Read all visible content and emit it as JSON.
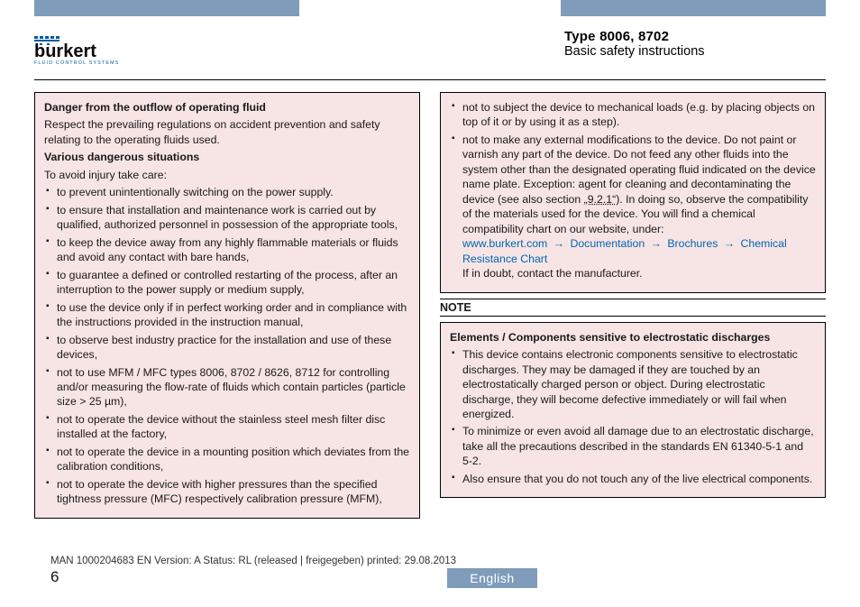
{
  "colors": {
    "tab": "#7f9cba",
    "warn_bg": "#f7e4e4",
    "link": "#0066b3",
    "text": "#1a1a1a",
    "logo_blue": "#005b9e",
    "logo_dark": "#0a0a0a"
  },
  "header": {
    "brand_main": "burkert",
    "brand_sub": "FLUID CONTROL SYSTEMS",
    "title": "Type 8006, 8702",
    "subtitle": "Basic safety instructions"
  },
  "left": {
    "h1": "Danger from the outflow of operating fluid",
    "p1": "Respect the prevailing regulations on accident prevention and safety relating to the operating fluids used.",
    "h2": "Various dangerous situations",
    "p2": "To avoid injury take care:",
    "items": [
      "to prevent unintentionally switching on the power supply.",
      "to ensure that installation and maintenance work is carried out by qualified, authorized personnel in possession of the appropriate tools,",
      "to keep the device away from any highly flammable materials or fluids and avoid any contact with bare hands,",
      "to guarantee a defined or controlled restarting of the process, after an interruption to the power supply or medium supply,",
      "to use the device only if in perfect working order and in compliance with the instructions provided in the instruction manual,",
      "to observe best industry practice for the installation and use of these devices,",
      "not to use MFM / MFC types 8006, 8702 / 8626, 8712 for controlling and/or measuring the flow-rate of fluids which contain particles (particle size > 25 µm),",
      "not to operate the device without the stainless steel mesh filter disc installed at the factory,",
      "not to operate the device in a mounting position which deviates from the calibration conditions,",
      "not to operate the device with higher pressures than the specified tightness pressure (MFC) respectively calibration pressure (MFM),"
    ]
  },
  "right_top": {
    "items_pre": [
      "not to subject the device to mechanical loads (e.g. by placing objects on top of it or by using it as a step).",
      ""
    ],
    "item2_a": "not to make any external modifications to the device. Do not paint or varnish any part of the device. Do not feed any other fluids into the system other than the designated operating fluid indicated on the device name plate. Exception: agent for cleaning and decontaminating the device (see also section ",
    "item2_ref": "„9.2.1“",
    "item2_b": "). In doing so, observe the compatibility of the materials used for the device. You will find a chemical compatibility chart on our website, under:",
    "link_path": [
      "www.burkert.com",
      "Documentation",
      "Brochures",
      "Chemical Resistance Chart"
    ],
    "item2_c": "If in doubt, contact the manufacturer."
  },
  "note_label": "NOTE",
  "right_note": {
    "h": "Elements / Components sensitive to electrostatic discharges",
    "items": [
      "This device contains electronic components sensitive to electrostatic discharges. They may be damaged if they are touched by an electrostatically charged person or object. During electrostatic discharge, they will become defective immediately or will fail when energized.",
      "To minimize or even avoid all damage due to an electrostatic discharge, take all the precautions described in the standards EN 61340-5-1 and 5-2.",
      "Also ensure that you do not touch any of the live electrical components."
    ]
  },
  "footer": {
    "meta": "MAN 1000204683 EN Version: A Status: RL (released | freigegeben)  printed: 29.08.2013",
    "page": "6",
    "lang": "English"
  }
}
